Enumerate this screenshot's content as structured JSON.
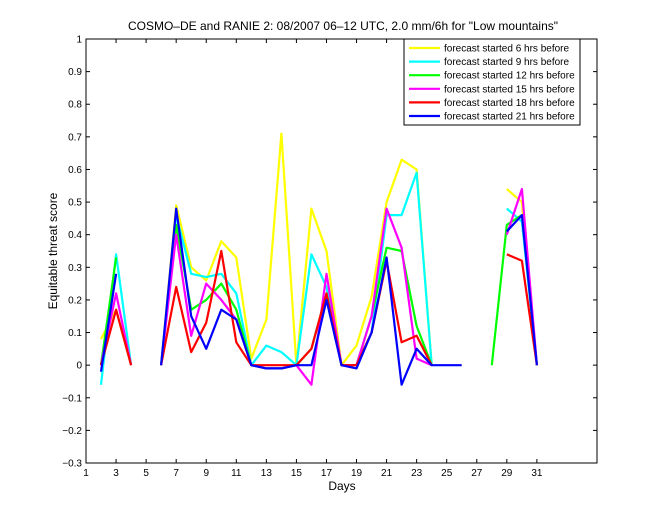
{
  "chart_data": {
    "type": "line",
    "title": "COSMO–DE and RANIE 2: 08/2007 06–12 UTC, 2.0 mm/6h for \"Low mountains\"",
    "xlabel": "Days",
    "ylabel": "Equitable threat score",
    "xlim": [
      1,
      35
    ],
    "ylim": [
      -0.3,
      1
    ],
    "xticks": [
      "1",
      "3",
      "5",
      "7",
      "9",
      "11",
      "13",
      "15",
      "17",
      "19",
      "21",
      "23",
      "25",
      "27",
      "29",
      "31"
    ],
    "yticks": [
      "1",
      "0.9",
      "0.8",
      "0.7",
      "0.6",
      "0.5",
      "0.4",
      "0.3",
      "0.2",
      "0.1",
      "0",
      "−0.1",
      "−0.2",
      "−0.3"
    ],
    "grid": false,
    "legend_position": "top-right",
    "series": [
      {
        "name": "forecast started 6 hrs before",
        "color": "#ffff00",
        "points": [
          [
            2,
            0.08
          ],
          [
            3,
            0.17
          ],
          [
            4,
            0.0
          ],
          null,
          [
            6,
            0.0
          ],
          [
            7,
            0.49
          ],
          [
            8,
            0.3
          ],
          [
            9,
            0.26
          ],
          [
            10,
            0.38
          ],
          [
            11,
            0.33
          ],
          [
            12,
            0.02
          ],
          [
            13,
            0.14
          ],
          [
            14,
            0.71
          ],
          [
            15,
            0.0
          ],
          [
            16,
            0.48
          ],
          [
            17,
            0.35
          ],
          [
            18,
            0.0
          ],
          [
            19,
            0.06
          ],
          [
            20,
            0.21
          ],
          [
            21,
            0.5
          ],
          [
            22,
            0.63
          ],
          [
            23,
            0.6
          ],
          [
            24,
            0.0
          ],
          null,
          [
            29,
            0.54
          ],
          [
            30,
            0.5
          ],
          [
            31,
            0.0
          ]
        ]
      },
      {
        "name": "forecast started 9 hrs before",
        "color": "#00ffff",
        "points": [
          [
            2,
            -0.06
          ],
          [
            3,
            0.34
          ],
          [
            4,
            0.0
          ],
          null,
          [
            6,
            0.0
          ],
          [
            7,
            0.46
          ],
          [
            8,
            0.28
          ],
          [
            9,
            0.27
          ],
          [
            10,
            0.28
          ],
          [
            11,
            0.22
          ],
          [
            12,
            0.0
          ],
          [
            13,
            0.06
          ],
          [
            14,
            0.04
          ],
          [
            15,
            0.0
          ],
          [
            16,
            0.34
          ],
          [
            17,
            0.24
          ],
          [
            18,
            0.0
          ],
          [
            19,
            0.0
          ],
          [
            20,
            0.1
          ],
          [
            21,
            0.46
          ],
          [
            22,
            0.46
          ],
          [
            23,
            0.59
          ],
          [
            24,
            0.0
          ],
          null,
          [
            29,
            0.48
          ],
          [
            30,
            0.44
          ],
          [
            31,
            0.0
          ]
        ]
      },
      {
        "name": "forecast started 12 hrs before",
        "color": "#00ff00",
        "points": [
          [
            2,
            0.0
          ],
          [
            3,
            0.33
          ],
          null,
          [
            6,
            0.0
          ],
          [
            7,
            0.43
          ],
          [
            8,
            0.17
          ],
          [
            9,
            0.2
          ],
          [
            10,
            0.25
          ],
          [
            11,
            0.17
          ],
          [
            12,
            0.0
          ],
          [
            13,
            -0.01
          ],
          [
            14,
            -0.01
          ],
          [
            15,
            0.0
          ],
          [
            16,
            0.05
          ],
          [
            17,
            0.22
          ],
          [
            18,
            0.0
          ],
          [
            19,
            0.0
          ],
          [
            20,
            0.15
          ],
          [
            21,
            0.36
          ],
          [
            22,
            0.35
          ],
          [
            23,
            0.12
          ],
          [
            24,
            0.0
          ],
          null,
          [
            28,
            0.0
          ],
          [
            29,
            0.43
          ],
          [
            30,
            0.46
          ],
          [
            31,
            0.0
          ]
        ]
      },
      {
        "name": "forecast started 15 hrs before",
        "color": "#ff00ff",
        "points": [
          [
            2,
            0.0
          ],
          [
            3,
            0.22
          ],
          [
            4,
            0.0
          ],
          null,
          [
            6,
            0.0
          ],
          [
            7,
            0.4
          ],
          [
            8,
            0.09
          ],
          [
            9,
            0.25
          ],
          [
            10,
            0.2
          ],
          [
            11,
            0.14
          ],
          [
            12,
            0.0
          ],
          [
            13,
            -0.01
          ],
          [
            14,
            -0.01
          ],
          [
            15,
            0.0
          ],
          [
            16,
            -0.06
          ],
          [
            17,
            0.28
          ],
          [
            18,
            0.0
          ],
          [
            19,
            0.0
          ],
          [
            20,
            0.15
          ],
          [
            21,
            0.48
          ],
          [
            22,
            0.36
          ],
          [
            23,
            0.02
          ],
          [
            24,
            0.0
          ],
          null,
          [
            29,
            0.4
          ],
          [
            30,
            0.54
          ],
          [
            31,
            0.0
          ]
        ]
      },
      {
        "name": "forecast started 18 hrs before",
        "color": "#ff0000",
        "points": [
          [
            2,
            0.0
          ],
          [
            3,
            0.17
          ],
          [
            4,
            0.0
          ],
          null,
          [
            6,
            0.0
          ],
          [
            7,
            0.24
          ],
          [
            8,
            0.04
          ],
          [
            9,
            0.13
          ],
          [
            10,
            0.35
          ],
          [
            11,
            0.07
          ],
          [
            12,
            0.0
          ],
          [
            13,
            0.0
          ],
          [
            14,
            0.0
          ],
          [
            15,
            0.0
          ],
          [
            16,
            0.05
          ],
          [
            17,
            0.22
          ],
          [
            18,
            0.0
          ],
          [
            19,
            0.0
          ],
          [
            20,
            0.1
          ],
          [
            21,
            0.32
          ],
          [
            22,
            0.07
          ],
          [
            23,
            0.09
          ],
          [
            24,
            0.0
          ],
          null,
          [
            29,
            0.34
          ],
          [
            30,
            0.32
          ],
          [
            31,
            0.0
          ]
        ]
      },
      {
        "name": "forecast started 21 hrs before",
        "color": "#0000ff",
        "points": [
          [
            2,
            -0.02
          ],
          [
            3,
            0.28
          ],
          null,
          [
            6,
            0.0
          ],
          [
            7,
            0.48
          ],
          [
            8,
            0.15
          ],
          [
            9,
            0.05
          ],
          [
            10,
            0.17
          ],
          [
            11,
            0.14
          ],
          [
            12,
            0.0
          ],
          [
            13,
            -0.01
          ],
          [
            14,
            -0.01
          ],
          [
            15,
            0.0
          ],
          [
            16,
            0.0
          ],
          [
            17,
            0.2
          ],
          [
            18,
            0.0
          ],
          [
            19,
            -0.01
          ],
          [
            20,
            0.1
          ],
          [
            21,
            0.33
          ],
          [
            22,
            -0.06
          ],
          [
            23,
            0.05
          ],
          [
            24,
            0.0
          ],
          [
            25,
            0.0
          ],
          [
            26,
            0.0
          ],
          null,
          [
            29,
            0.41
          ],
          [
            30,
            0.46
          ],
          [
            31,
            0.0
          ]
        ]
      }
    ]
  }
}
